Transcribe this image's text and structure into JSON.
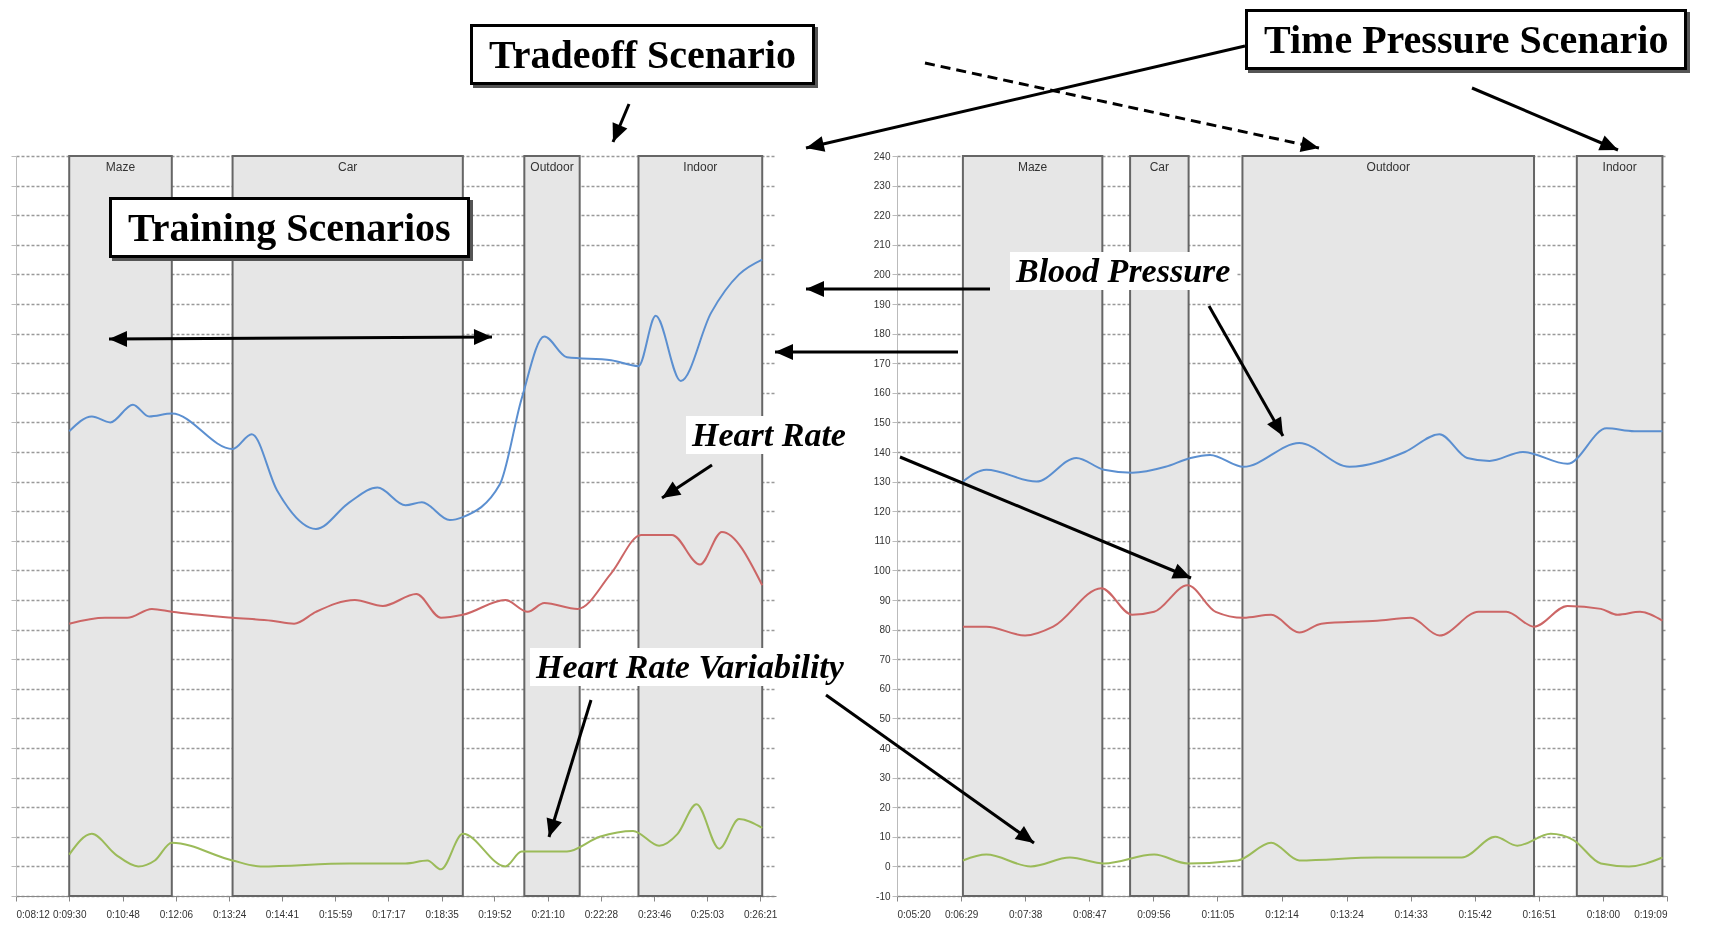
{
  "chart_data": [
    {
      "type": "line",
      "xlim": [
        0.13667,
        0.4456
      ],
      "ylim": [
        -10,
        240
      ],
      "grid": "y",
      "xticks": [
        {
          "value": 0.13667,
          "label": "0:08:12"
        },
        {
          "value": 0.15833,
          "label": "0:09:30"
        },
        {
          "value": 0.18,
          "label": "0:10:48"
        },
        {
          "value": 0.20167,
          "label": "0:12:06"
        },
        {
          "value": 0.22333,
          "label": "0:13:24"
        },
        {
          "value": 0.24472,
          "label": "0:14:41"
        },
        {
          "value": 0.26639,
          "label": "0:15:59"
        },
        {
          "value": 0.28806,
          "label": "0:17:17"
        },
        {
          "value": 0.30972,
          "label": "0:18:35"
        },
        {
          "value": 0.33111,
          "label": "0:19:52"
        },
        {
          "value": 0.35278,
          "label": "0:21:10"
        },
        {
          "value": 0.37444,
          "label": "0:22:28"
        },
        {
          "value": 0.39611,
          "label": "0:23:46"
        },
        {
          "value": 0.4175,
          "label": "0:25:03"
        },
        {
          "value": 0.43917,
          "label": "0:26:21"
        }
      ],
      "yticks": [
        -10,
        0,
        10,
        20,
        30,
        40,
        50,
        60,
        70,
        80,
        90,
        100,
        110,
        120,
        130,
        140,
        150,
        160,
        170,
        180,
        190,
        200,
        210,
        220,
        230,
        240
      ],
      "tick_labels": "x",
      "bands": [
        {
          "axis": "x",
          "from": 0.1583,
          "to": 0.2,
          "label": "Maze",
          "color": "#e6e6e6"
        },
        {
          "axis": "x",
          "from": 0.2247,
          "to": 0.3183,
          "label": "Car",
          "color": "#e6e6e6"
        },
        {
          "axis": "x",
          "from": 0.3433,
          "to": 0.3658,
          "label": "Outdoor",
          "color": "#e6e6e6"
        },
        {
          "axis": "x",
          "from": 0.3897,
          "to": 0.44,
          "label": "Indoor",
          "color": "#e6e6e6"
        }
      ],
      "series": [
        {
          "color": "#5b8fd0",
          "x": [
            0.1583,
            0.1675,
            0.175,
            0.1842,
            0.1908,
            0.2,
            0.2247,
            0.2325,
            0.2428,
            0.2586,
            0.2722,
            0.2836,
            0.295,
            0.3017,
            0.313,
            0.3183,
            0.3333,
            0.3422,
            0.3514,
            0.3606,
            0.3786,
            0.3897,
            0.3967,
            0.4069,
            0.4192,
            0.4306,
            0.44
          ],
          "values": [
            147,
            152,
            150,
            156,
            152,
            153,
            141,
            146,
            127,
            114,
            123,
            128,
            122,
            123,
            117,
            118,
            129,
            158,
            179,
            172,
            171,
            169,
            186,
            164,
            187,
            200,
            205
          ]
        },
        {
          "color": "#cc6666",
          "x": [
            0.1583,
            0.1728,
            0.1819,
            0.1919,
            0.2,
            0.2247,
            0.2406,
            0.2497,
            0.2586,
            0.2744,
            0.2858,
            0.2994,
            0.3094,
            0.3183,
            0.3356,
            0.3447,
            0.3514,
            0.365,
            0.3786,
            0.3908,
            0.4033,
            0.4147,
            0.4236,
            0.44
          ],
          "values": [
            82,
            84,
            84,
            87,
            86,
            84,
            83,
            82,
            86,
            90,
            88,
            92,
            84,
            85,
            90,
            86,
            89,
            87,
            99,
            112,
            112,
            102,
            113,
            95
          ]
        },
        {
          "color": "#9bbb59",
          "x": [
            0.1583,
            0.1675,
            0.1772,
            0.1864,
            0.1931,
            0.2,
            0.2247,
            0.2361,
            0.2722,
            0.295,
            0.3039,
            0.3094,
            0.3183,
            0.3356,
            0.3422,
            0.3606,
            0.3739,
            0.3875,
            0.3981,
            0.4056,
            0.4133,
            0.4225,
            0.4306,
            0.44
          ],
          "values": [
            4,
            11,
            4,
            0,
            2,
            8,
            2,
            0,
            1,
            1,
            2,
            -1,
            11,
            0,
            5,
            5,
            10,
            12,
            7,
            11,
            21,
            6,
            16,
            13
          ]
        }
      ],
      "annotations": [
        "Training Scenarios",
        "Tradeoff Scenario",
        "Heart Rate Variability"
      ]
    },
    {
      "type": "line",
      "xlim": [
        0.08889,
        0.31917
      ],
      "ylim": [
        -10,
        240
      ],
      "grid": "y",
      "xticks": [
        {
          "value": 0.08889,
          "label": "0:05:20"
        },
        {
          "value": 0.10806,
          "label": "0:06:29"
        },
        {
          "value": 0.12722,
          "label": "0:07:38"
        },
        {
          "value": 0.14639,
          "label": "0:08:47"
        },
        {
          "value": 0.16556,
          "label": "0:09:56"
        },
        {
          "value": 0.18472,
          "label": "0:11:05"
        },
        {
          "value": 0.20389,
          "label": "0:12:14"
        },
        {
          "value": 0.22333,
          "label": "0:13:24"
        },
        {
          "value": 0.2425,
          "label": "0:14:33"
        },
        {
          "value": 0.26167,
          "label": "0:15:42"
        },
        {
          "value": 0.28083,
          "label": "0:16:51"
        },
        {
          "value": 0.3,
          "label": "0:18:00"
        },
        {
          "value": 0.31917,
          "label": "0:19:09"
        }
      ],
      "yticks": [
        -10,
        0,
        10,
        20,
        30,
        40,
        50,
        60,
        70,
        80,
        90,
        100,
        110,
        120,
        130,
        140,
        150,
        160,
        170,
        180,
        190,
        200,
        210,
        220,
        230,
        240
      ],
      "bands": [
        {
          "axis": "x",
          "from": 0.1086,
          "to": 0.1503,
          "label": "Maze",
          "color": "#e6e6e6"
        },
        {
          "axis": "x",
          "from": 0.1586,
          "to": 0.1761,
          "label": "Car",
          "color": "#e6e6e6"
        },
        {
          "axis": "x",
          "from": 0.1922,
          "to": 0.2794,
          "label": "Outdoor",
          "color": "#e6e6e6"
        },
        {
          "axis": "x",
          "from": 0.2922,
          "to": 0.3178,
          "label": "Indoor",
          "color": "#e6e6e6"
        }
      ],
      "series": [
        {
          "color": "#5b8fd0",
          "x": [
            0.1086,
            0.1156,
            0.1306,
            0.1425,
            0.1508,
            0.1592,
            0.1692,
            0.1767,
            0.1825,
            0.1925,
            0.2092,
            0.2242,
            0.2408,
            0.2511,
            0.2594,
            0.2661,
            0.2761,
            0.2894,
            0.3011,
            0.3094,
            0.3178
          ],
          "values": [
            130,
            134,
            130,
            138,
            134,
            133,
            135,
            138,
            139,
            135,
            143,
            135,
            140,
            146,
            138,
            137,
            140,
            136,
            148,
            147,
            147
          ]
        },
        {
          "color": "#cc6666",
          "x": [
            0.1086,
            0.1156,
            0.1272,
            0.1356,
            0.15,
            0.1592,
            0.1658,
            0.1758,
            0.1842,
            0.1925,
            0.2008,
            0.2092,
            0.2158,
            0.2325,
            0.2425,
            0.2511,
            0.2628,
            0.2711,
            0.2794,
            0.2894,
            0.2994,
            0.3044,
            0.3111,
            0.3178
          ],
          "values": [
            81,
            81,
            78,
            81,
            94,
            85,
            86,
            95,
            86,
            84,
            85,
            79,
            82,
            83,
            84,
            78,
            86,
            86,
            81,
            88,
            87,
            85,
            86,
            83
          ]
        },
        {
          "color": "#9bbb59",
          "x": [
            0.1086,
            0.1156,
            0.1289,
            0.1406,
            0.1508,
            0.1658,
            0.1758,
            0.1908,
            0.2008,
            0.2092,
            0.2325,
            0.2578,
            0.2678,
            0.2744,
            0.2844,
            0.2911,
            0.2994,
            0.3078,
            0.3178
          ],
          "values": [
            2,
            4,
            0,
            3,
            1,
            4,
            1,
            2,
            8,
            2,
            3,
            3,
            10,
            7,
            11,
            9,
            1,
            0,
            3
          ]
        }
      ],
      "annotations": [
        "Time Pressure Scenario",
        "Blood Pressure",
        "Heart Rate"
      ]
    }
  ]
}
